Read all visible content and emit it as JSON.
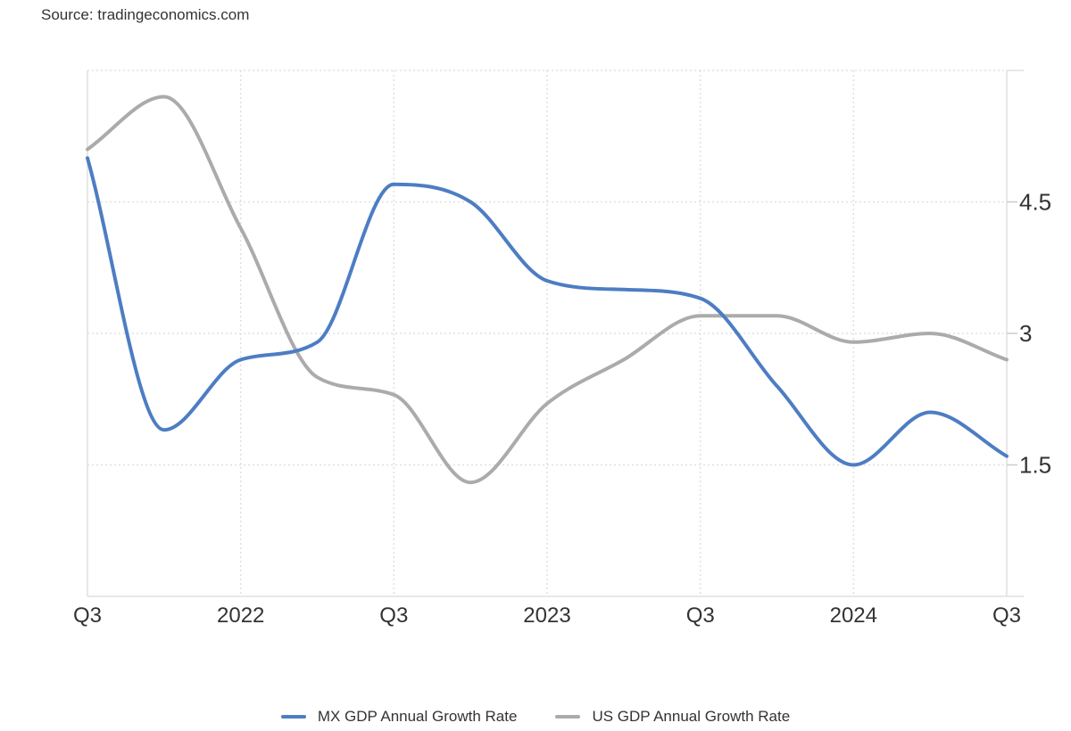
{
  "source": {
    "text": "Source: tradingeconomics.com"
  },
  "colors": {
    "mx_line": "#4d7dc3",
    "us_line": "#ababab",
    "grid": "#e0e0e0",
    "border": "#e0e0e0",
    "tick": "#cccccc",
    "text": "#333333",
    "background": "#ffffff"
  },
  "legend": {
    "items": [
      {
        "label": "MX GDP Annual Growth Rate"
      },
      {
        "label": "US GDP Annual Growth Rate"
      }
    ]
  },
  "chart_data": {
    "type": "line",
    "title": "",
    "xlabel": "",
    "ylabel": "",
    "grid": "dotted",
    "legend_position": "bottom",
    "x_categories": [
      "Q3 2021",
      "Q4 2021",
      "Q1 2022",
      "Q2 2022",
      "Q3 2022",
      "Q4 2022",
      "Q1 2023",
      "Q2 2023",
      "Q3 2023",
      "Q4 2023",
      "Q1 2024",
      "Q2 2024",
      "Q3 2024"
    ],
    "x_tick_indices": [
      0,
      2,
      4,
      6,
      8,
      10,
      12
    ],
    "x_tick_labels": [
      "Q3",
      "2022",
      "Q3",
      "2023",
      "Q3",
      "2024",
      "Q3"
    ],
    "ylim": [
      0,
      6
    ],
    "y_ticks": [
      1.5,
      3,
      4.5
    ],
    "y_tick_labels": [
      "1.5",
      "3",
      "4.5"
    ],
    "series": [
      {
        "name": "MX GDP Annual Growth Rate",
        "color": "#4d7dc3",
        "values": [
          5.0,
          1.9,
          2.7,
          2.9,
          4.7,
          4.5,
          3.6,
          3.5,
          3.4,
          2.4,
          1.5,
          2.1,
          1.6
        ]
      },
      {
        "name": "US GDP Annual Growth Rate",
        "color": "#ababab",
        "values": [
          5.1,
          5.7,
          4.2,
          2.5,
          2.3,
          1.3,
          2.2,
          2.7,
          3.2,
          3.2,
          2.9,
          3.0,
          2.7
        ]
      }
    ]
  }
}
